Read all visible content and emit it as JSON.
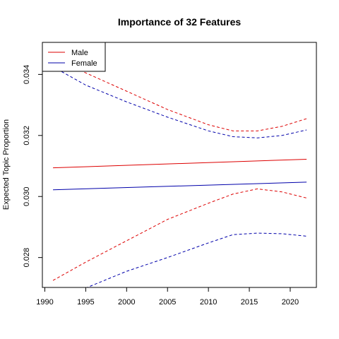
{
  "chart_data": {
    "type": "line",
    "title": "Importance of 32 Features",
    "xlabel": "",
    "ylabel": "Expected Topic Proportion",
    "xlim": [
      1989.7,
      2023.2
    ],
    "ylim": [
      0.02702,
      0.03505
    ],
    "xticks": [
      1990,
      1995,
      2000,
      2005,
      2010,
      2015,
      2020
    ],
    "yticks": [
      0.028,
      0.03,
      0.032,
      0.034
    ],
    "ytick_labels": [
      "0.028",
      "0.030",
      "0.032",
      "0.034"
    ],
    "grid": false,
    "legend": {
      "position": "top-left",
      "entries": [
        "Male",
        "Female"
      ]
    },
    "colors": {
      "Male": "#dd0000",
      "Female": "#0000aa"
    },
    "series": [
      {
        "name": "Male",
        "style": "solid",
        "x": [
          1991,
          2022
        ],
        "y": [
          0.03094,
          0.03122
        ]
      },
      {
        "name": "Female",
        "style": "solid",
        "x": [
          1991,
          2022
        ],
        "y": [
          0.03022,
          0.03047
        ]
      },
      {
        "name": "Male",
        "style": "dashed",
        "x": [
          1991,
          1995,
          2000,
          2005,
          2010,
          2013,
          2016,
          2019,
          2022
        ],
        "y": [
          0.03455,
          0.03405,
          0.03345,
          0.03285,
          0.03235,
          0.03215,
          0.03215,
          0.0323,
          0.03255
        ]
      },
      {
        "name": "Female",
        "style": "dashed",
        "x": [
          1991,
          1995,
          2000,
          2005,
          2010,
          2013,
          2016,
          2019,
          2022
        ],
        "y": [
          0.03425,
          0.03365,
          0.0331,
          0.0326,
          0.03215,
          0.03196,
          0.03192,
          0.032,
          0.03218
        ]
      },
      {
        "name": "Male",
        "style": "dashed",
        "x": [
          1991,
          1995,
          2000,
          2005,
          2010,
          2013,
          2016,
          2019,
          2022
        ],
        "y": [
          0.02725,
          0.02785,
          0.02855,
          0.02925,
          0.02978,
          0.03008,
          0.03025,
          0.03015,
          0.02995
        ]
      },
      {
        "name": "Female",
        "style": "dashed",
        "x": [
          1991,
          1995,
          2000,
          2005,
          2010,
          2013,
          2016,
          2019,
          2022
        ],
        "y": [
          0.0266,
          0.027,
          0.02755,
          0.028,
          0.02848,
          0.02875,
          0.0288,
          0.02878,
          0.0287
        ]
      }
    ]
  }
}
